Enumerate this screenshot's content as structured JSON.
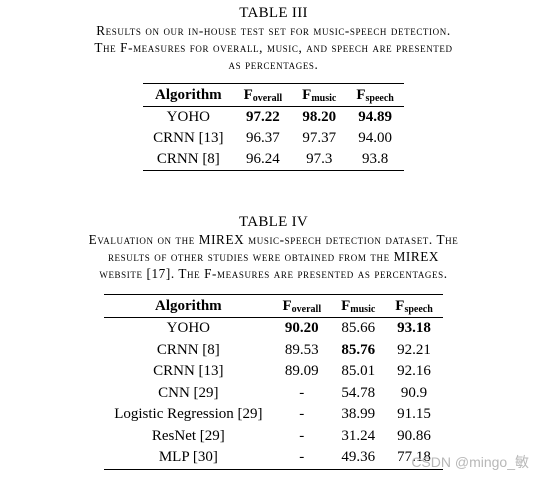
{
  "table3": {
    "label": "TABLE III",
    "caption_lines": [
      "Results on our in-house test set for music-speech detection.",
      "The F-measures for overall, music, and speech are presented",
      "as percentages."
    ],
    "header": {
      "algorithm": "Algorithm",
      "f": "F",
      "overall": "overall",
      "music": "music",
      "speech": "speech"
    },
    "rows": [
      {
        "algorithm": "YOHO",
        "overall": "97.22",
        "music": "98.20",
        "speech": "94.89"
      },
      {
        "algorithm": "CRNN [13]",
        "overall": "96.37",
        "music": "97.37",
        "speech": "94.00"
      },
      {
        "algorithm": "CRNN [8]",
        "overall": "96.24",
        "music": "97.3",
        "speech": "93.8"
      }
    ]
  },
  "table4": {
    "label": "TABLE IV",
    "caption_lines": [
      "Evaluation on the MIREX music-speech detection dataset. The",
      "results of other studies were obtained from the MIREX",
      "website [17]. The F-measures are presented as percentages."
    ],
    "header": {
      "algorithm": "Algorithm",
      "f": "F",
      "overall": "overall",
      "music": "music",
      "speech": "speech"
    },
    "rows": [
      {
        "algorithm": "YOHO",
        "overall": "90.20",
        "music": "85.66",
        "speech": "93.18"
      },
      {
        "algorithm": "CRNN [8]",
        "overall": "89.53",
        "music": "85.76",
        "speech": "92.21"
      },
      {
        "algorithm": "CRNN [13]",
        "overall": "89.09",
        "music": "85.01",
        "speech": "92.16"
      },
      {
        "algorithm": "CNN [29]",
        "overall": "-",
        "music": "54.78",
        "speech": "90.9"
      },
      {
        "algorithm": "Logistic Regression [29]",
        "overall": "-",
        "music": "38.99",
        "speech": "91.15"
      },
      {
        "algorithm": "ResNet [29]",
        "overall": "-",
        "music": "31.24",
        "speech": "90.86"
      },
      {
        "algorithm": "MLP [30]",
        "overall": "-",
        "music": "49.36",
        "speech": "77.18"
      }
    ]
  },
  "watermark": "CSDN @mingo_敏"
}
